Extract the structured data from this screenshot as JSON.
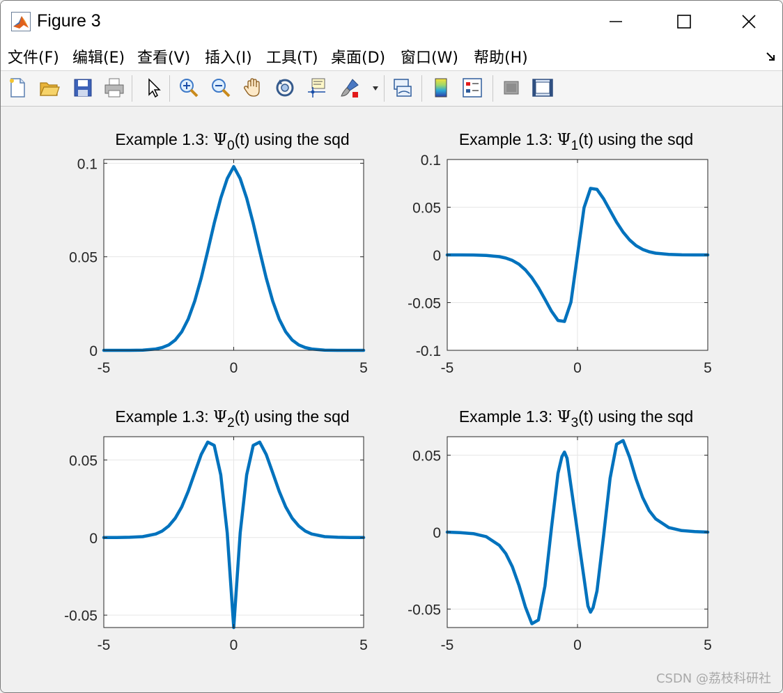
{
  "window": {
    "title": "Figure 3"
  },
  "menu": [
    "文件(F)",
    "编辑(E)",
    "查看(V)",
    "插入(I)",
    "工具(T)",
    "桌面(D)",
    "窗口(W)",
    "帮助(H)"
  ],
  "toolbar_icons": [
    "new-file-icon",
    "open-folder-icon",
    "save-icon",
    "print-icon",
    "pointer-icon",
    "zoom-in-icon",
    "zoom-out-icon",
    "pan-hand-icon",
    "rotate-3d-icon",
    "data-cursor-icon",
    "brush-icon",
    "link-plot-icon",
    "colorbar-icon",
    "legend-icon",
    "hide-plot-tools-icon",
    "show-plot-tools-icon"
  ],
  "watermark": "CSDN @荔枝科研社",
  "colors": {
    "line": "#0072BD",
    "axes_bg": "#ffffff",
    "grid": "#e6e6e6",
    "figure_bg": "#f0f0f0"
  },
  "chart_data": [
    {
      "type": "line",
      "title": "Example 1.3: Ψ_0(t) using the sqd",
      "title_prefix": "Example 1.3: ",
      "title_symbol": "Ψ",
      "title_sub": "0",
      "title_suffix": "(t) using the sqd",
      "xlim": [
        -5,
        5
      ],
      "ylim": [
        0,
        0.102
      ],
      "xticks": [
        -5,
        0,
        5
      ],
      "xtick_labels": [
        "-5",
        "0",
        "5"
      ],
      "yticks": [
        0,
        0.05,
        0.1
      ],
      "ytick_labels": [
        "0",
        "0.05",
        "0.1"
      ],
      "grid": true,
      "x": [
        -5,
        -4.5,
        -4,
        -3.5,
        -3,
        -2.75,
        -2.5,
        -2.25,
        -2,
        -1.75,
        -1.5,
        -1.25,
        -1,
        -0.75,
        -0.5,
        -0.25,
        0,
        0.25,
        0.5,
        0.75,
        1,
        1.25,
        1.5,
        1.75,
        2,
        2.25,
        2.5,
        2.75,
        3,
        3.5,
        4,
        4.5,
        5
      ],
      "series": [
        {
          "values": [
            0,
            0,
            0,
            0.0001,
            0.0007,
            0.0015,
            0.0029,
            0.0055,
            0.0099,
            0.0167,
            0.0263,
            0.0387,
            0.0531,
            0.0679,
            0.0813,
            0.0918,
            0.0982,
            0.0918,
            0.0813,
            0.0679,
            0.0531,
            0.0387,
            0.0263,
            0.0167,
            0.0099,
            0.0055,
            0.0029,
            0.0015,
            0.0007,
            0.0001,
            0,
            0,
            0
          ]
        }
      ]
    },
    {
      "type": "line",
      "title": "Example 1.3: Ψ_1(t) using the sqd",
      "title_prefix": "Example 1.3: ",
      "title_symbol": "Ψ",
      "title_sub": "1",
      "title_suffix": "(t) using the sqd",
      "xlim": [
        -5,
        5
      ],
      "ylim": [
        -0.1,
        0.1
      ],
      "xticks": [
        -5,
        0,
        5
      ],
      "xtick_labels": [
        "-5",
        "0",
        "5"
      ],
      "yticks": [
        -0.1,
        -0.05,
        0,
        0.05,
        0.1
      ],
      "ytick_labels": [
        "-0.1",
        "-0.05",
        "0",
        "0.05",
        "0.1"
      ],
      "grid": true,
      "x": [
        -5,
        -4.5,
        -4,
        -3.5,
        -3,
        -2.75,
        -2.5,
        -2.25,
        -2,
        -1.75,
        -1.5,
        -1.25,
        -1,
        -0.75,
        -0.5,
        -0.25,
        0,
        0.25,
        0.5,
        0.75,
        1,
        1.25,
        1.5,
        1.75,
        2,
        2.25,
        2.5,
        2.75,
        3,
        3.5,
        4,
        4.5,
        5
      ],
      "series": [
        {
          "values": [
            0,
            0,
            -0.0001,
            -0.0005,
            -0.0018,
            -0.0033,
            -0.0058,
            -0.0097,
            -0.0157,
            -0.0239,
            -0.0343,
            -0.0465,
            -0.0589,
            -0.0687,
            -0.0697,
            -0.0495,
            0,
            0.0495,
            0.0697,
            0.0687,
            0.0589,
            0.0465,
            0.0343,
            0.0239,
            0.0157,
            0.0097,
            0.0058,
            0.0033,
            0.0018,
            0.0005,
            0.0001,
            0,
            0
          ]
        }
      ]
    },
    {
      "type": "line",
      "title": "Example 1.3: Ψ_2(t) using the sqd",
      "title_prefix": "Example 1.3: ",
      "title_symbol": "Ψ",
      "title_sub": "2",
      "title_suffix": "(t) using the sqd",
      "xlim": [
        -5,
        5
      ],
      "ylim": [
        -0.058,
        0.065
      ],
      "xticks": [
        -5,
        0,
        5
      ],
      "xtick_labels": [
        "-5",
        "0",
        "5"
      ],
      "yticks": [
        -0.05,
        0,
        0.05
      ],
      "ytick_labels": [
        "-0.05",
        "0",
        "0.05"
      ],
      "grid": true,
      "x": [
        -5,
        -4.5,
        -4,
        -3.5,
        -3,
        -2.75,
        -2.5,
        -2.25,
        -2,
        -1.75,
        -1.5,
        -1.25,
        -1,
        -0.75,
        -0.5,
        -0.25,
        0,
        0.25,
        0.5,
        0.75,
        1,
        1.25,
        1.5,
        1.75,
        2,
        2.25,
        2.5,
        2.75,
        3,
        3.5,
        4,
        4.5,
        5
      ],
      "series": [
        {
          "values": [
            0,
            0,
            0.0002,
            0.0006,
            0.0023,
            0.0042,
            0.0075,
            0.0125,
            0.0198,
            0.0298,
            0.0417,
            0.0536,
            0.0615,
            0.0594,
            0.0404,
            0.003,
            -0.058,
            0.003,
            0.0404,
            0.0594,
            0.0615,
            0.0536,
            0.0417,
            0.0298,
            0.0198,
            0.0125,
            0.0075,
            0.0042,
            0.0023,
            0.0006,
            0.0002,
            0,
            0
          ]
        }
      ]
    },
    {
      "type": "line",
      "title": "Example 1.3: Ψ_3(t) using the sqd",
      "title_prefix": "Example 1.3: ",
      "title_symbol": "Ψ",
      "title_sub": "3",
      "title_suffix": "(t) using the sqd",
      "xlim": [
        -5,
        5
      ],
      "ylim": [
        -0.062,
        0.062
      ],
      "xticks": [
        -5,
        0,
        5
      ],
      "xtick_labels": [
        "-5",
        "0",
        "5"
      ],
      "yticks": [
        -0.05,
        0,
        0.05
      ],
      "ytick_labels": [
        "-0.05",
        "0",
        "0.05"
      ],
      "grid": true,
      "x": [
        -5,
        -4.5,
        -4,
        -3.5,
        -3,
        -2.75,
        -2.5,
        -2.25,
        -2,
        -1.75,
        -1.5,
        -1.25,
        -1,
        -0.75,
        -0.6,
        -0.5,
        -0.4,
        -0.25,
        -0.1,
        0,
        0.1,
        0.25,
        0.4,
        0.5,
        0.6,
        0.75,
        1,
        1.25,
        1.5,
        1.75,
        2,
        2.25,
        2.5,
        2.75,
        3,
        3.5,
        4,
        4.5,
        5
      ],
      "series": [
        {
          "values": [
            0,
            -0.0003,
            -0.001,
            -0.003,
            -0.0086,
            -0.014,
            -0.0225,
            -0.0345,
            -0.0486,
            -0.0595,
            -0.0571,
            -0.035,
            0.0026,
            0.0382,
            0.049,
            0.052,
            0.048,
            0.03,
            0.012,
            0,
            -0.012,
            -0.03,
            -0.048,
            -0.052,
            -0.049,
            -0.0382,
            -0.0026,
            0.035,
            0.0571,
            0.0595,
            0.0486,
            0.0345,
            0.0225,
            0.014,
            0.0086,
            0.003,
            0.001,
            0.0003,
            0
          ]
        }
      ]
    }
  ]
}
